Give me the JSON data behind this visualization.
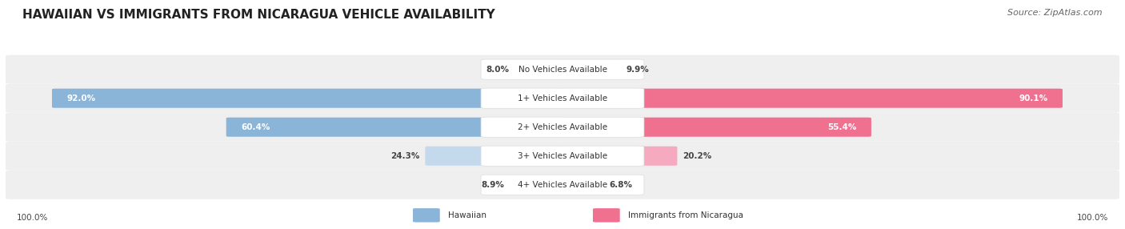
{
  "title": "HAWAIIAN VS IMMIGRANTS FROM NICARAGUA VEHICLE AVAILABILITY",
  "source": "Source: ZipAtlas.com",
  "categories": [
    "No Vehicles Available",
    "1+ Vehicles Available",
    "2+ Vehicles Available",
    "3+ Vehicles Available",
    "4+ Vehicles Available"
  ],
  "hawaiian_values": [
    8.0,
    92.0,
    60.4,
    24.3,
    8.9
  ],
  "nicaragua_values": [
    9.9,
    90.1,
    55.4,
    20.2,
    6.8
  ],
  "hawaiian_color": "#8ab4d8",
  "nicaragua_color": "#f07090",
  "hawaiian_color_light": "#c5d9ed",
  "nicaragua_color_light": "#f5aabf",
  "bg_color": "#ffffff",
  "row_color": "#efefef",
  "max_value": 100.0,
  "figsize": [
    14.06,
    2.86
  ],
  "dpi": 100,
  "title_fontsize": 11,
  "label_fontsize": 8,
  "value_fontsize": 7.5,
  "source_fontsize": 8
}
